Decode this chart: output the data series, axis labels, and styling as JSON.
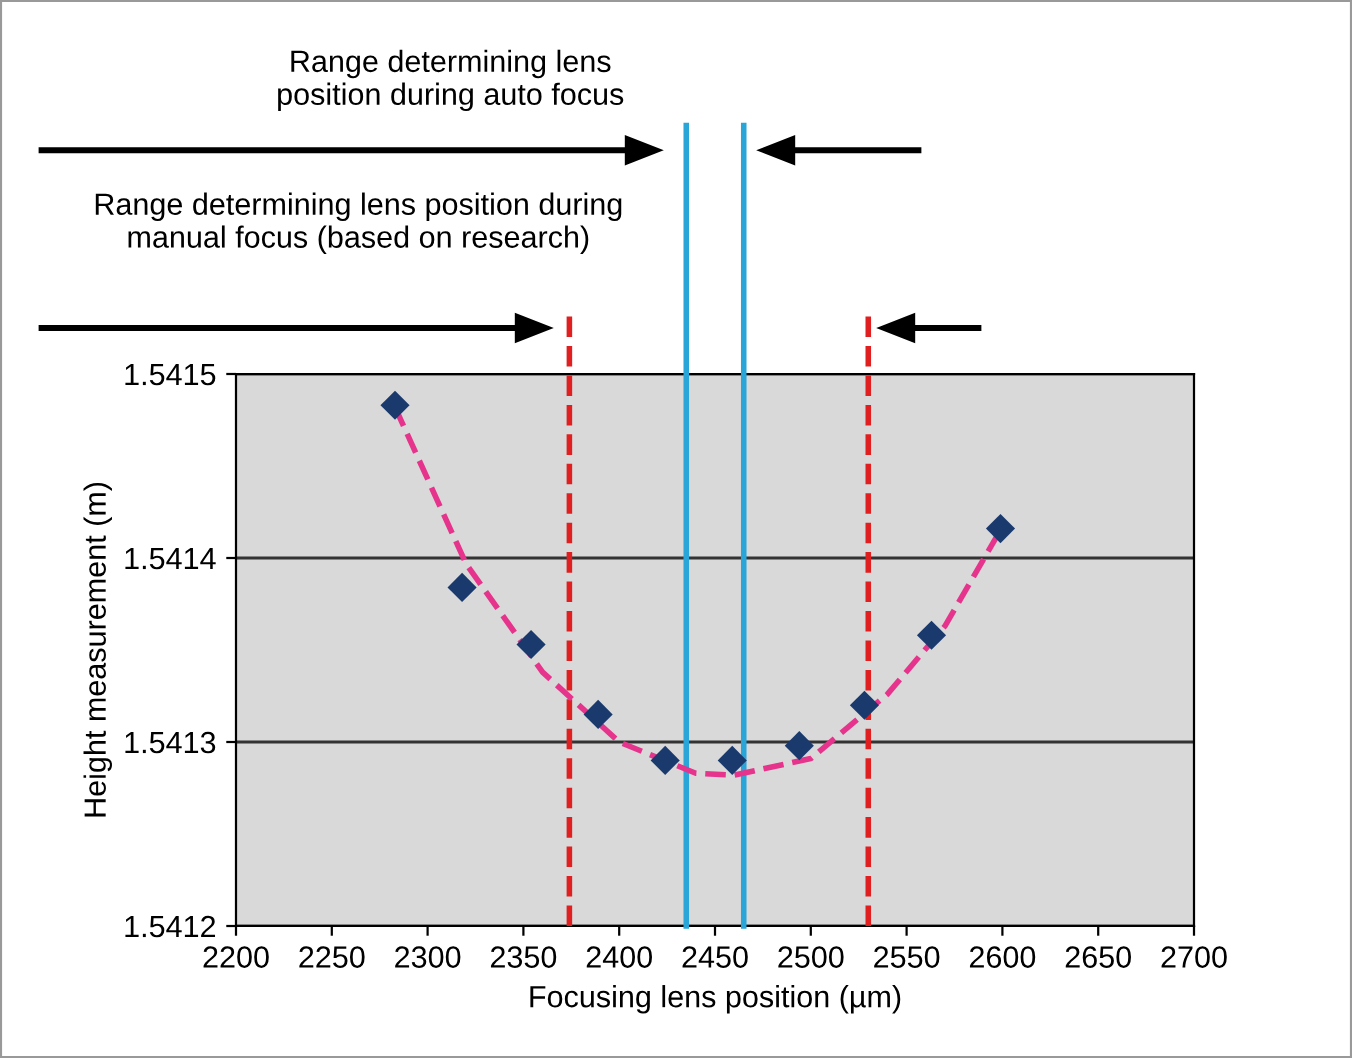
{
  "chart_data": {
    "type": "scatter",
    "xlabel": "Focusing lens position (µm)",
    "ylabel": "Height measurement (m)",
    "series": [
      {
        "color": "#1a3a6e",
        "marker": "diamond",
        "x": [
          2283,
          2318,
          2354,
          2389,
          2424,
          2459,
          2494,
          2528,
          2563,
          2599
        ],
        "values": [
          1.541483,
          1.541384,
          1.541353,
          1.541315,
          1.54129,
          1.54129,
          1.541298,
          1.54132,
          1.541358,
          1.541416
        ]
      },
      {
        "type": "line",
        "color": "#e6338c",
        "line_style": "dashed",
        "x": [
          2283,
          2320,
          2360,
          2400,
          2440,
          2460,
          2500,
          2540,
          2570,
          2600
        ],
        "values": [
          1.541482,
          1.541397,
          1.541338,
          1.5413,
          1.541283,
          1.541282,
          1.541291,
          1.541326,
          1.541363,
          1.541417
        ]
      }
    ],
    "xlim": [
      2200,
      2700
    ],
    "xticks": [
      2200,
      2250,
      2300,
      2350,
      2400,
      2450,
      2500,
      2550,
      2600,
      2650,
      2700
    ],
    "ylim": [
      1.5412,
      1.5415
    ],
    "yticks": [
      1.5412,
      1.5413,
      1.5414,
      1.5415
    ],
    "grid": "y",
    "ref_lines": [
      {
        "axis": "x",
        "value": 2374,
        "color": "#e02020",
        "line_style": "dashed"
      },
      {
        "axis": "x",
        "value": 2530,
        "color": "#e02020",
        "line_style": "dashed"
      },
      {
        "axis": "x",
        "value": 2435,
        "color": "#2aa5d8",
        "line_style": "solid"
      },
      {
        "axis": "x",
        "value": 2465,
        "color": "#2aa5d8",
        "line_style": "solid"
      }
    ],
    "annotations": [
      "Range determining lens\nposition during auto focus",
      "Range determining lens position during\nmanual focus (based on research)"
    ]
  }
}
